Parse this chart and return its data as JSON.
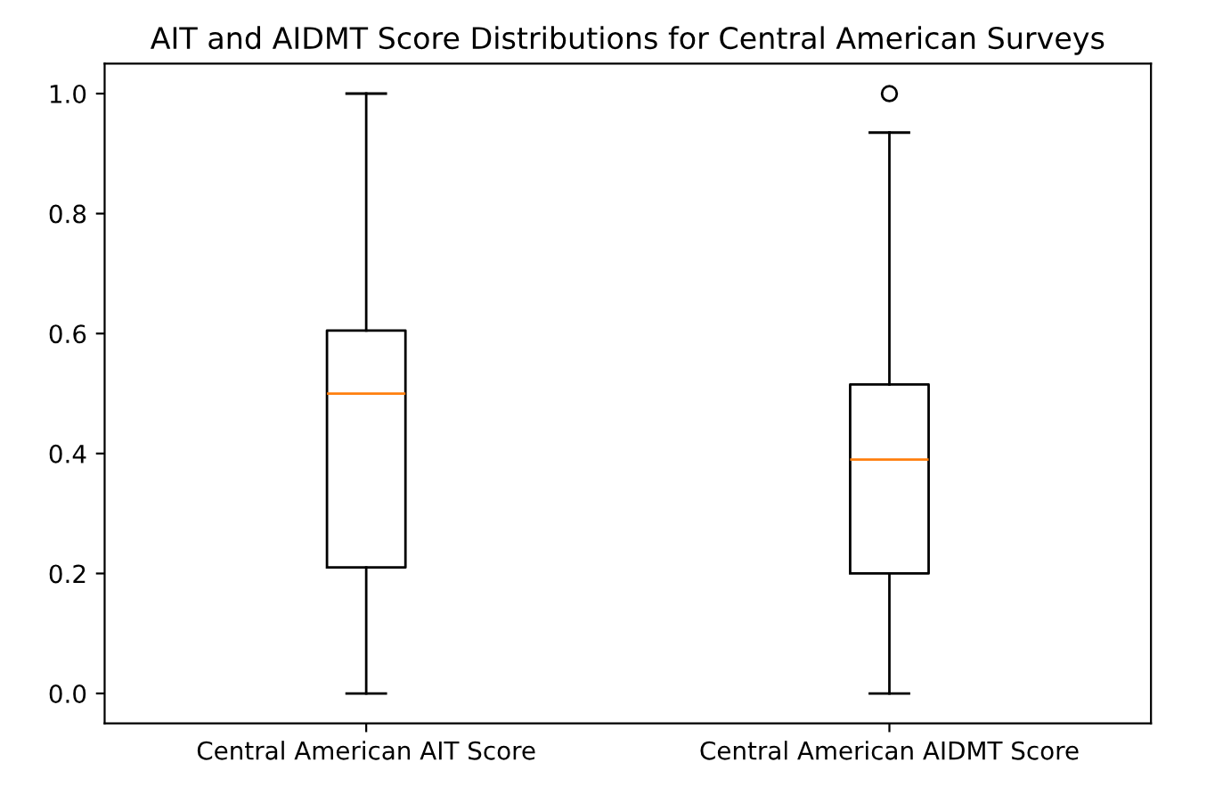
{
  "chart_data": {
    "type": "box",
    "title": "AIT and AIDMT Score Distributions for Central American Surveys",
    "categories": [
      "Central American AIT Score",
      "Central American AIDMT Score"
    ],
    "boxes": [
      {
        "low": 0.0,
        "q1": 0.21,
        "median": 0.5,
        "q3": 0.605,
        "high": 1.0
      },
      {
        "low": 0.0,
        "q1": 0.2,
        "median": 0.39,
        "q3": 0.515,
        "high": 0.935,
        "outliers": [
          1.0
        ]
      }
    ],
    "color": "#000000",
    "ylim": [
      -0.05,
      1.05
    ],
    "yticks": [
      {
        "value": 0,
        "label": "0.0"
      },
      0.2,
      0.4,
      0.6,
      0.8,
      {
        "value": 1,
        "label": "1.0"
      }
    ],
    "grid": false
  }
}
